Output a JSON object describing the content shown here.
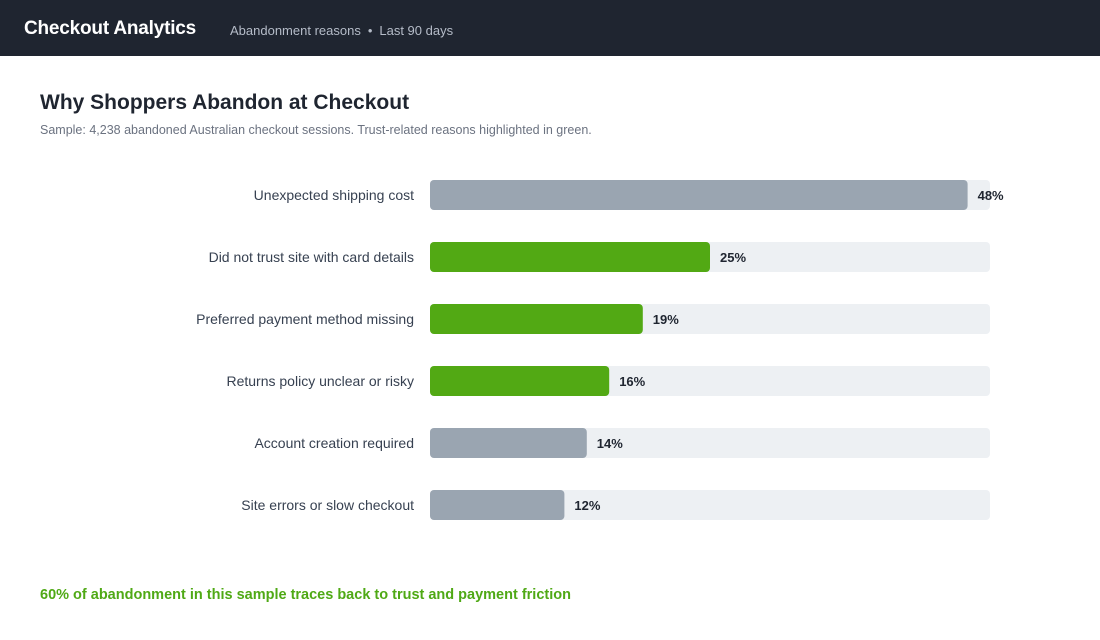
{
  "header": {
    "app_title": "Checkout Analytics",
    "breadcrumb_view": "Abandonment reasons",
    "breadcrumb_separator": "•",
    "breadcrumb_range": "Last 90 days"
  },
  "page": {
    "title": "Why Shoppers Abandon at Checkout",
    "subtitle": "Sample: 4,238 abandoned Australian checkout sessions. Trust-related reasons highlighted in green.",
    "callout": "60% of abandonment in this sample traces back to trust and payment friction"
  },
  "chart_data": {
    "type": "bar",
    "orientation": "horizontal",
    "title": "Why Shoppers Abandon at Checkout",
    "xlim": [
      0,
      50
    ],
    "categories": [
      "Unexpected shipping cost",
      "Did not trust site with card details",
      "Preferred payment method missing",
      "Returns policy unclear or risky",
      "Account creation required",
      "Site errors or slow checkout"
    ],
    "values": [
      48,
      25,
      19,
      16,
      14,
      12
    ],
    "value_labels": [
      "48%",
      "25%",
      "19%",
      "16%",
      "14%",
      "12%"
    ],
    "trust_related": [
      false,
      true,
      true,
      true,
      false,
      false
    ],
    "colors": {
      "trust": "#52a914",
      "other": "#9aa5b1",
      "track": "#edf0f3",
      "category_text": "#374151",
      "value_text": "#1f2530"
    },
    "grid": false,
    "legend": "none"
  }
}
